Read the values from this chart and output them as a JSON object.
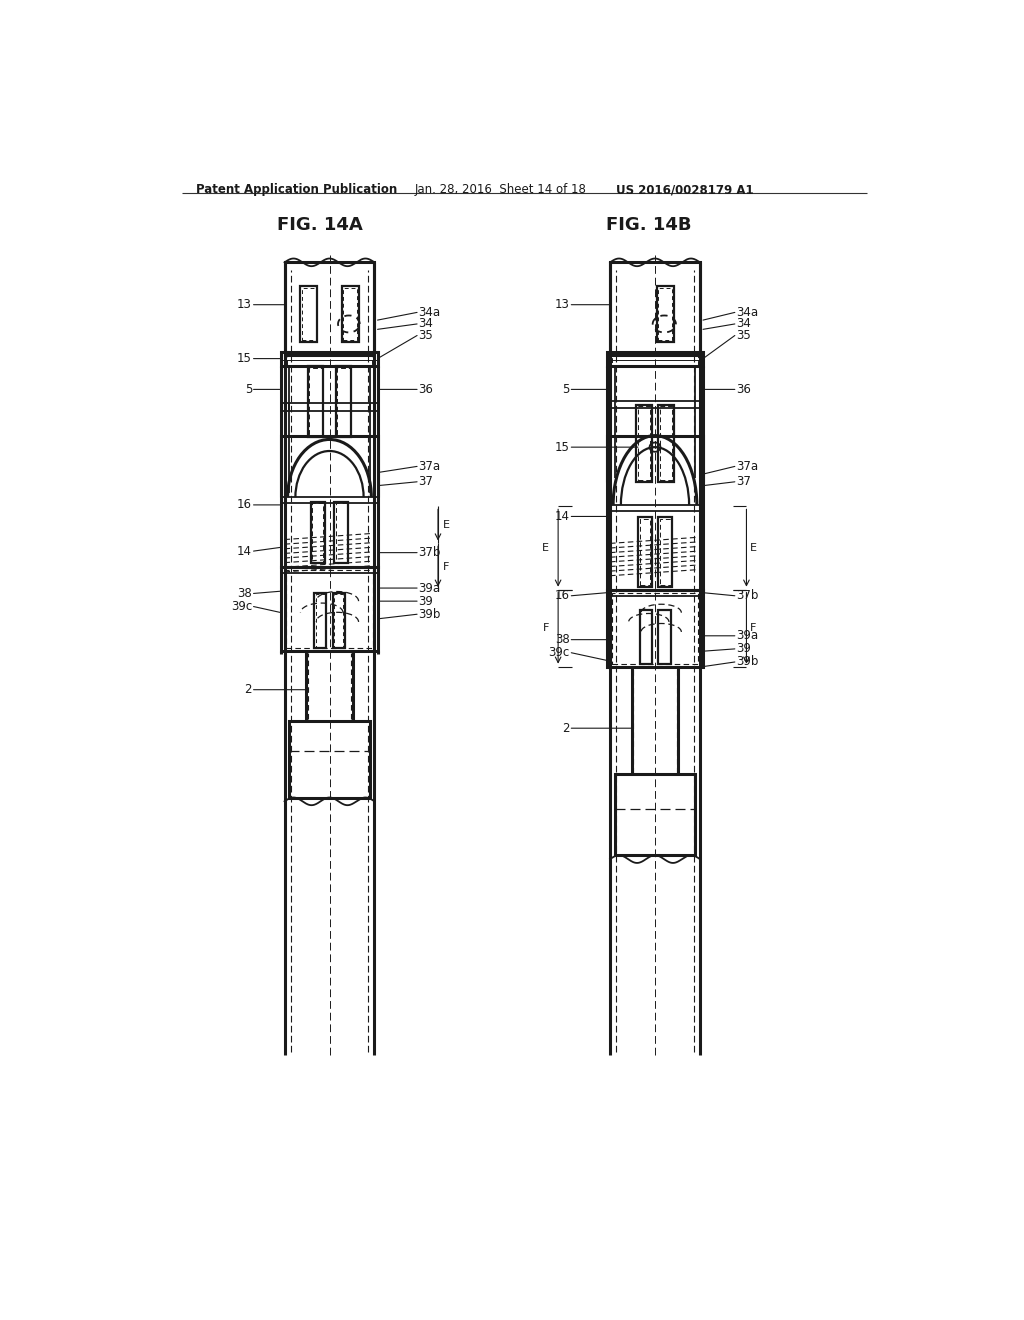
{
  "bg_color": "#ffffff",
  "header_text": "Patent Application Publication",
  "header_date": "Jan. 28, 2016  Sheet 14 of 18",
  "header_patent": "US 2016/0028179 A1",
  "fig_label_a": "FIG. 14A",
  "fig_label_b": "FIG. 14B",
  "line_color": "#1a1a1a",
  "lw": 1.3,
  "lw2": 2.2,
  "lw3": 1.6
}
